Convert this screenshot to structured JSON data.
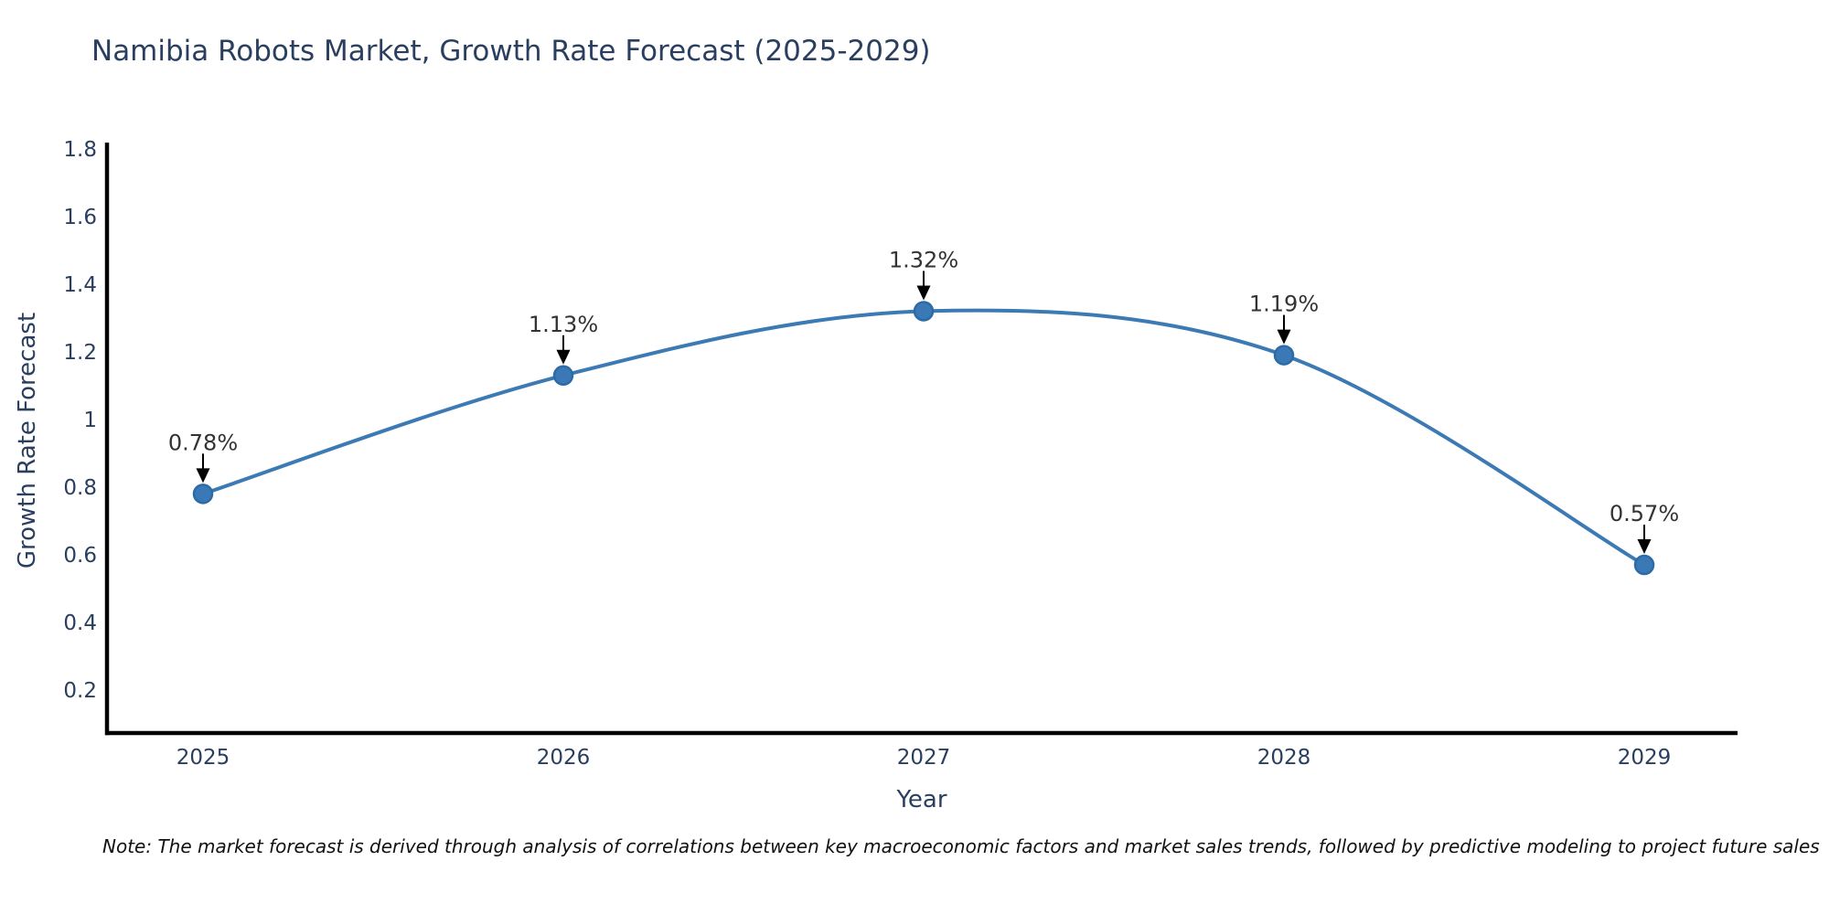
{
  "title": "Namibia Robots Market, Growth Rate Forecast (2025-2029)",
  "note": "Note: The market forecast is derived through analysis of correlations between key macroeconomic factors and market sales trends, followed by predictive modeling to project future sales",
  "chart_data": {
    "type": "line",
    "line_shape": "spline",
    "title": "Namibia Robots Market, Growth Rate Forecast (2025-2029)",
    "xlabel": "Year",
    "ylabel": "Growth Rate Forecast",
    "x": [
      2025,
      2026,
      2027,
      2028,
      2029
    ],
    "y": [
      0.78,
      1.13,
      1.32,
      1.19,
      0.57
    ],
    "point_labels": [
      "0.78%",
      "1.13%",
      "1.32%",
      "1.19%",
      "0.57%"
    ],
    "xtick_labels": [
      "2025",
      "2026",
      "2027",
      "2028",
      "2029"
    ],
    "yticks": [
      0.2,
      0.4,
      0.6,
      0.8,
      1.0,
      1.2,
      1.4,
      1.6,
      1.8
    ],
    "ytick_labels": [
      "0.2",
      "0.4",
      "0.6",
      "0.8",
      "1",
      "1.2",
      "1.4",
      "1.6",
      "1.8"
    ],
    "ylim": [
      0.073,
      1.813
    ],
    "grid": false,
    "legend_position": "none",
    "annotations_have_arrows": true,
    "colors": {
      "background": "#ffffff",
      "line": "#3c7ab4",
      "marker_fill": "#3a79b5",
      "marker_stroke": "#2d6ba6",
      "axis_line": "#000000",
      "tick_text": "#2a3f5f",
      "title_text": "#2a3f5f",
      "annotation_text": "#333333",
      "arrow": "#000000",
      "note_text": "#111111"
    }
  }
}
